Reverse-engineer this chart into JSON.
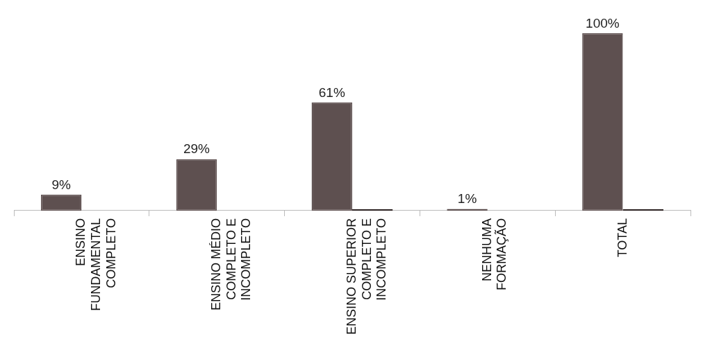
{
  "chart_data": {
    "type": "bar",
    "categories": [
      "ENSINO FUNDAMENTAL COMPLETO",
      "ENSINO MÉDIO COMPLETO E INCOMPLETO",
      "ENSINO SUPERIOR COMPLETO E INCOMPLETO",
      "NENHUMA FORMAÇÃO",
      "TOTAL"
    ],
    "series": [
      {
        "color": "#5e5050",
        "values": [
          9,
          29,
          61,
          1,
          100
        ],
        "value_labels": [
          "9%",
          "29%",
          "61%",
          "1%",
          "100%"
        ]
      },
      {
        "color": "#2a2020",
        "values": [
          null,
          null,
          0,
          null,
          0
        ]
      }
    ],
    "grid": false,
    "relative": false
  }
}
